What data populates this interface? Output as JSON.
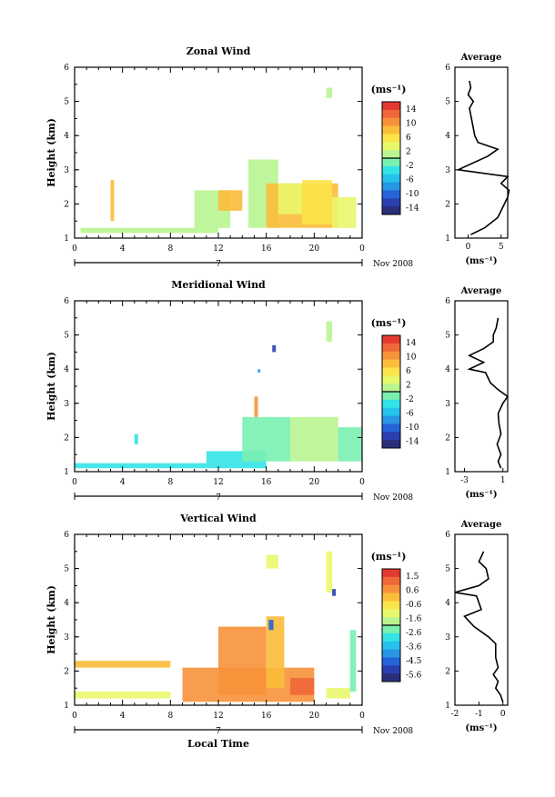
{
  "figure": {
    "x_ticks": [
      "0",
      "4",
      "8",
      "12",
      "16",
      "20",
      "0"
    ],
    "day_label": "7",
    "month_label": "Nov 2008",
    "x_axis_title": "Local Time",
    "y_axis_title": "Height (km)",
    "height_ticks": [
      "1",
      "2",
      "3",
      "4",
      "5",
      "6"
    ],
    "colorbar_unit": "(ms⁻¹)",
    "avg_title": "Average",
    "avg_unit": "(ms⁻¹)",
    "palette": [
      "#2b2f7a",
      "#2a3fb0",
      "#2563d8",
      "#2896e6",
      "#26c2ee",
      "#34e3e6",
      "#79f0b0",
      "#b9f590",
      "#e9f76a",
      "#fbe34a",
      "#fbbd3a",
      "#f7923a",
      "#f0673a",
      "#e23a2e"
    ]
  },
  "chart_data": [
    {
      "type": "heatmap",
      "title": "Zonal Wind",
      "xlabel": "",
      "ylabel": "Height (km)",
      "xlim": [
        0,
        24
      ],
      "ylim": [
        1,
        6
      ],
      "units": "ms⁻¹",
      "colorbar_ticks": [
        "14",
        "10",
        "6",
        "2",
        "-2",
        "-6",
        "-10",
        "-14"
      ],
      "colorbar_range": [
        -16,
        16
      ],
      "cells": [
        {
          "t": [
            0.5,
            12
          ],
          "h": [
            1.15,
            1.3
          ],
          "v": 1
        },
        {
          "t": [
            3,
            3.3
          ],
          "h": [
            1.5,
            2.7
          ],
          "v": 7
        },
        {
          "t": [
            10,
            13
          ],
          "h": [
            1.3,
            2.4
          ],
          "v": 2
        },
        {
          "t": [
            12,
            14
          ],
          "h": [
            1.8,
            2.4
          ],
          "v": 8
        },
        {
          "t": [
            14.5,
            17
          ],
          "h": [
            1.3,
            3.3
          ],
          "v": 1
        },
        {
          "t": [
            16,
            22
          ],
          "h": [
            1.3,
            2.6
          ],
          "v": 8
        },
        {
          "t": [
            17,
            19
          ],
          "h": [
            1.7,
            2.6
          ],
          "v": 4
        },
        {
          "t": [
            19,
            21.5
          ],
          "h": [
            1.4,
            2.7
          ],
          "v": 6
        },
        {
          "t": [
            21.5,
            23.5
          ],
          "h": [
            1.3,
            2.2
          ],
          "v": 4
        },
        {
          "t": [
            21,
            21.5
          ],
          "h": [
            5.1,
            5.4
          ],
          "v": 1
        }
      ],
      "average_profile": {
        "xlim": [
          -2,
          6
        ],
        "x_ticks": [
          "0",
          "5"
        ],
        "height": [
          1.1,
          1.3,
          1.6,
          2.0,
          2.2,
          2.4,
          2.6,
          2.8,
          3.0,
          3.4,
          3.6,
          3.8,
          4.0,
          4.4,
          4.8,
          5.0,
          5.2,
          5.4,
          5.6
        ],
        "value": [
          0.4,
          2.5,
          4.5,
          5.5,
          6.0,
          6.2,
          5.0,
          6.0,
          -1.5,
          3.0,
          4.5,
          1.5,
          1.0,
          0.6,
          0.2,
          0.8,
          0.0,
          0.4,
          0.2
        ]
      }
    },
    {
      "type": "heatmap",
      "title": "Meridional Wind",
      "xlabel": "",
      "ylabel": "Height (km)",
      "xlim": [
        0,
        24
      ],
      "ylim": [
        1,
        6
      ],
      "units": "ms⁻¹",
      "colorbar_ticks": [
        "14",
        "10",
        "6",
        "2",
        "-2",
        "-6",
        "-10",
        "-14"
      ],
      "colorbar_range": [
        -16,
        16
      ],
      "cells": [
        {
          "t": [
            0,
            11
          ],
          "h": [
            1.1,
            1.25
          ],
          "v": -3
        },
        {
          "t": [
            5,
            5.3
          ],
          "h": [
            1.8,
            2.1
          ],
          "v": -3
        },
        {
          "t": [
            11,
            16
          ],
          "h": [
            1.1,
            1.6
          ],
          "v": -3
        },
        {
          "t": [
            14,
            18
          ],
          "h": [
            1.3,
            2.6
          ],
          "v": -2
        },
        {
          "t": [
            15,
            15.3
          ],
          "h": [
            2.6,
            3.2
          ],
          "v": 10
        },
        {
          "t": [
            16.5,
            16.8
          ],
          "h": [
            4.5,
            4.7
          ],
          "v": -12
        },
        {
          "t": [
            15.3,
            15.5
          ],
          "h": [
            3.9,
            4.0
          ],
          "v": -9
        },
        {
          "t": [
            18,
            22
          ],
          "h": [
            1.3,
            2.6
          ],
          "v": 1
        },
        {
          "t": [
            22,
            24
          ],
          "h": [
            1.3,
            2.3
          ],
          "v": -1
        },
        {
          "t": [
            21,
            21.5
          ],
          "h": [
            4.8,
            5.4
          ],
          "v": 1
        }
      ],
      "average_profile": {
        "xlim": [
          -4,
          1.5
        ],
        "x_ticks": [
          "-3",
          "1"
        ],
        "height": [
          1.1,
          1.3,
          1.5,
          1.8,
          2.1,
          2.4,
          2.7,
          3.0,
          3.2,
          3.4,
          3.6,
          3.9,
          4.0,
          4.2,
          4.4,
          4.6,
          4.8,
          5.0,
          5.2,
          5.5
        ],
        "value": [
          0.8,
          0.5,
          0.8,
          0.4,
          0.8,
          0.6,
          0.5,
          1.0,
          1.5,
          0.5,
          -0.3,
          -0.8,
          -2.5,
          -1.0,
          -2.5,
          -1.0,
          0.0,
          0.0,
          0.3,
          0.5
        ]
      }
    },
    {
      "type": "heatmap",
      "title": "Vertical Wind",
      "xlabel": "Local Time",
      "ylabel": "Height (km)",
      "xlim": [
        0,
        24
      ],
      "ylim": [
        1,
        6
      ],
      "units": "ms⁻¹",
      "colorbar_ticks": [
        "1.5",
        "0.6",
        "-0.6",
        "-1.6",
        "-2.6",
        "-3.6",
        "-4.5",
        "-5.6"
      ],
      "colorbar_range": [
        -6,
        2
      ],
      "cells": [
        {
          "t": [
            0,
            8
          ],
          "h": [
            1.2,
            1.4
          ],
          "v": -1.0
        },
        {
          "t": [
            0,
            8
          ],
          "h": [
            2.1,
            2.3
          ],
          "v": -0.2
        },
        {
          "t": [
            9,
            20
          ],
          "h": [
            1.1,
            2.1
          ],
          "v": 0.8
        },
        {
          "t": [
            12,
            16
          ],
          "h": [
            1.3,
            3.3
          ],
          "v": 0.4
        },
        {
          "t": [
            16,
            17.5
          ],
          "h": [
            1.5,
            3.6
          ],
          "v": 0.1
        },
        {
          "t": [
            16.2,
            16.6
          ],
          "h": [
            3.2,
            3.5
          ],
          "v": -4.6
        },
        {
          "t": [
            18,
            20
          ],
          "h": [
            1.3,
            1.8
          ],
          "v": 1.2
        },
        {
          "t": [
            21,
            23
          ],
          "h": [
            1.2,
            1.5
          ],
          "v": -1.1
        },
        {
          "t": [
            23,
            23.5
          ],
          "h": [
            1.4,
            3.2
          ],
          "v": -2.5
        },
        {
          "t": [
            16,
            17
          ],
          "h": [
            5.0,
            5.4
          ],
          "v": -1.0
        },
        {
          "t": [
            21,
            21.5
          ],
          "h": [
            4.3,
            5.5
          ],
          "v": -1.1
        },
        {
          "t": [
            21.5,
            21.8
          ],
          "h": [
            4.2,
            4.4
          ],
          "v": -5.0
        }
      ],
      "average_profile": {
        "xlim": [
          -2,
          0.2
        ],
        "x_ticks": [
          "-2",
          "-1",
          "0"
        ],
        "height": [
          1.1,
          1.3,
          1.5,
          1.7,
          1.9,
          2.1,
          2.4,
          2.8,
          3.0,
          3.3,
          3.6,
          3.8,
          4.0,
          4.2,
          4.3,
          4.5,
          4.7,
          5.0,
          5.2,
          5.5
        ],
        "value": [
          0.0,
          -0.1,
          -0.3,
          -0.2,
          -0.4,
          -0.2,
          -0.3,
          -0.3,
          -0.6,
          -1.2,
          -1.6,
          -0.9,
          -1.0,
          -1.1,
          -2.0,
          -1.0,
          -0.6,
          -0.7,
          -1.0,
          -0.8
        ]
      }
    }
  ]
}
